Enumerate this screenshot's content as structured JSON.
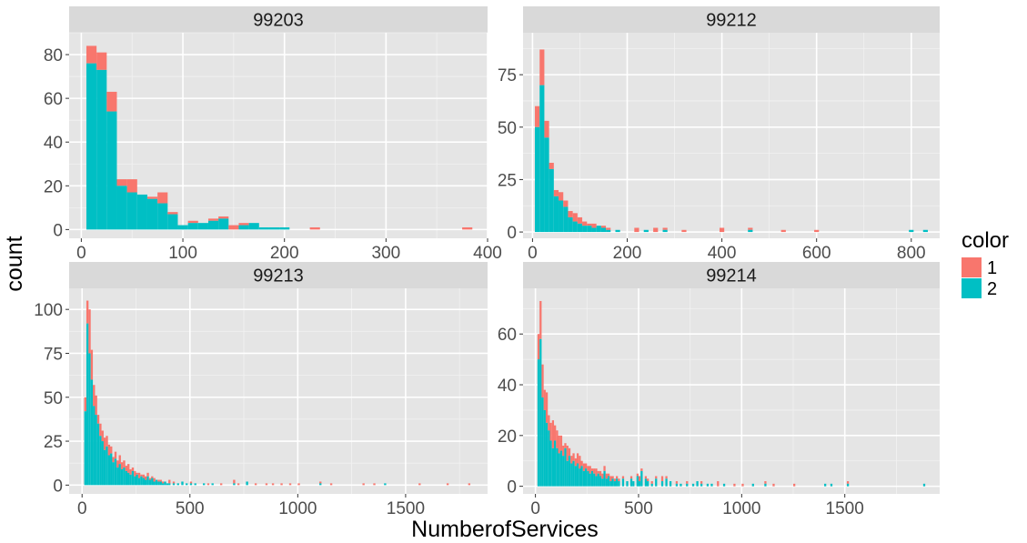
{
  "chart_data": {
    "type": "bar",
    "variant": "stacked-histogram-facets",
    "xlabel": "NumberofServices",
    "ylabel": "count",
    "legend": {
      "title": "color",
      "placement": "right",
      "entries": [
        {
          "label": "1",
          "color": "#F8766D"
        },
        {
          "label": "2",
          "color": "#00BFC4"
        }
      ]
    },
    "background": "#E5E5E5",
    "strip_background": "#D9D9D9",
    "grid": true,
    "panels": [
      {
        "title": "99203",
        "xlim": [
          -12,
          400
        ],
        "ylim": [
          -4,
          90
        ],
        "xticks": [
          0,
          100,
          200,
          300,
          400
        ],
        "yticks": [
          0,
          20,
          40,
          60,
          80
        ],
        "bins": [
          [
            5,
            15,
            76,
            84
          ],
          [
            15,
            25,
            73,
            81
          ],
          [
            25,
            35,
            54,
            63
          ],
          [
            35,
            45,
            20,
            23
          ],
          [
            45,
            55,
            17,
            23
          ],
          [
            55,
            65,
            16,
            16
          ],
          [
            65,
            75,
            14,
            15
          ],
          [
            75,
            85,
            12,
            17
          ],
          [
            85,
            95,
            7,
            8
          ],
          [
            95,
            105,
            2,
            2
          ],
          [
            105,
            115,
            3,
            4
          ],
          [
            115,
            125,
            3,
            3
          ],
          [
            125,
            135,
            4,
            5
          ],
          [
            135,
            145,
            5,
            6
          ],
          [
            145,
            155,
            0,
            2
          ],
          [
            155,
            165,
            2,
            3
          ],
          [
            165,
            175,
            3,
            3
          ],
          [
            175,
            185,
            1,
            1
          ],
          [
            185,
            195,
            1,
            1
          ],
          [
            195,
            205,
            1,
            1
          ],
          [
            225,
            235,
            0,
            1
          ],
          [
            375,
            385,
            0,
            1
          ]
        ]
      },
      {
        "title": "99212",
        "xlim": [
          -20,
          860
        ],
        "ylim": [
          -3,
          95
        ],
        "xticks": [
          0,
          200,
          400,
          600,
          800
        ],
        "yticks": [
          0,
          25,
          50,
          75
        ],
        "bins": [
          [
            5,
            15,
            50,
            60
          ],
          [
            15,
            25,
            70,
            87
          ],
          [
            25,
            35,
            45,
            53
          ],
          [
            35,
            45,
            30,
            33
          ],
          [
            45,
            55,
            17,
            20
          ],
          [
            55,
            65,
            15,
            19
          ],
          [
            65,
            75,
            12,
            15
          ],
          [
            75,
            85,
            7,
            10
          ],
          [
            85,
            95,
            5,
            9
          ],
          [
            95,
            105,
            4,
            7
          ],
          [
            105,
            115,
            3,
            5
          ],
          [
            115,
            125,
            3,
            4
          ],
          [
            125,
            135,
            2,
            4
          ],
          [
            135,
            145,
            3,
            3
          ],
          [
            145,
            155,
            2,
            3
          ],
          [
            155,
            165,
            1,
            2
          ],
          [
            175,
            185,
            1,
            1
          ],
          [
            215,
            225,
            0,
            2
          ],
          [
            235,
            245,
            1,
            1
          ],
          [
            255,
            265,
            0,
            2
          ],
          [
            275,
            285,
            1,
            2
          ],
          [
            315,
            325,
            0,
            1
          ],
          [
            395,
            405,
            0,
            2
          ],
          [
            455,
            465,
            1,
            2
          ],
          [
            525,
            535,
            0,
            1
          ],
          [
            595,
            605,
            0,
            1
          ],
          [
            795,
            805,
            1,
            1
          ],
          [
            825,
            835,
            1,
            1
          ]
        ]
      },
      {
        "title": "99213",
        "xlim": [
          -60,
          1880
        ],
        "ylim": [
          -5,
          112
        ],
        "xticks": [
          0,
          500,
          1000,
          1500
        ],
        "yticks": [
          0,
          25,
          50,
          75,
          100
        ],
        "bins": [
          [
            10,
            20,
            42,
            50
          ],
          [
            20,
            30,
            92,
            105
          ],
          [
            30,
            40,
            75,
            100
          ],
          [
            40,
            50,
            60,
            77
          ],
          [
            50,
            60,
            45,
            57
          ],
          [
            60,
            70,
            40,
            51
          ],
          [
            70,
            80,
            35,
            40
          ],
          [
            80,
            90,
            28,
            35
          ],
          [
            90,
            100,
            25,
            31
          ],
          [
            100,
            110,
            20,
            27
          ],
          [
            110,
            120,
            22,
            28
          ],
          [
            120,
            130,
            17,
            23
          ],
          [
            130,
            140,
            18,
            22
          ],
          [
            140,
            150,
            13,
            16
          ],
          [
            150,
            160,
            15,
            19
          ],
          [
            160,
            170,
            10,
            14
          ],
          [
            170,
            180,
            12,
            17
          ],
          [
            180,
            190,
            9,
            13
          ],
          [
            190,
            200,
            10,
            14
          ],
          [
            200,
            210,
            8,
            11
          ],
          [
            210,
            220,
            7,
            12
          ],
          [
            220,
            230,
            6,
            9
          ],
          [
            230,
            240,
            8,
            10
          ],
          [
            240,
            250,
            5,
            8
          ],
          [
            250,
            260,
            6,
            7
          ],
          [
            260,
            270,
            4,
            7
          ],
          [
            270,
            280,
            5,
            6
          ],
          [
            280,
            290,
            4,
            6
          ],
          [
            290,
            300,
            3,
            5
          ],
          [
            300,
            310,
            5,
            7
          ],
          [
            310,
            320,
            3,
            4
          ],
          [
            320,
            330,
            4,
            5
          ],
          [
            330,
            340,
            2,
            4
          ],
          [
            340,
            350,
            3,
            3
          ],
          [
            350,
            360,
            2,
            3
          ],
          [
            360,
            370,
            2,
            3
          ],
          [
            370,
            380,
            1,
            2
          ],
          [
            380,
            390,
            2,
            2
          ],
          [
            390,
            400,
            1,
            1
          ],
          [
            400,
            410,
            1,
            3
          ],
          [
            420,
            430,
            1,
            2
          ],
          [
            440,
            450,
            1,
            1
          ],
          [
            460,
            470,
            2,
            2
          ],
          [
            480,
            490,
            1,
            1
          ],
          [
            500,
            510,
            1,
            2
          ],
          [
            520,
            530,
            1,
            1
          ],
          [
            560,
            570,
            1,
            1
          ],
          [
            580,
            590,
            0,
            1
          ],
          [
            600,
            610,
            1,
            1
          ],
          [
            640,
            650,
            0,
            1
          ],
          [
            700,
            710,
            1,
            3
          ],
          [
            720,
            730,
            0,
            1
          ],
          [
            760,
            770,
            2,
            2
          ],
          [
            800,
            810,
            0,
            1
          ],
          [
            850,
            860,
            0,
            1
          ],
          [
            880,
            890,
            0,
            1
          ],
          [
            920,
            930,
            0,
            1
          ],
          [
            960,
            970,
            0,
            1
          ],
          [
            1000,
            1010,
            0,
            1
          ],
          [
            1100,
            1110,
            1,
            2
          ],
          [
            1150,
            1160,
            0,
            1
          ],
          [
            1300,
            1310,
            0,
            1
          ],
          [
            1350,
            1360,
            0,
            1
          ],
          [
            1400,
            1410,
            1,
            1
          ],
          [
            1560,
            1570,
            0,
            1
          ],
          [
            1690,
            1700,
            0,
            1
          ],
          [
            1790,
            1800,
            0,
            1
          ]
        ]
      },
      {
        "title": "99214",
        "xlim": [
          -60,
          1960
        ],
        "ylim": [
          -3,
          78
        ],
        "xticks": [
          0,
          500,
          1000,
          1500
        ],
        "yticks": [
          0,
          20,
          40,
          60
        ],
        "bins": [
          [
            10,
            20,
            50,
            60
          ],
          [
            20,
            30,
            58,
            73
          ],
          [
            30,
            40,
            35,
            48
          ],
          [
            40,
            50,
            30,
            38
          ],
          [
            50,
            60,
            25,
            37
          ],
          [
            60,
            70,
            22,
            28
          ],
          [
            70,
            80,
            18,
            25
          ],
          [
            80,
            90,
            15,
            26
          ],
          [
            90,
            100,
            18,
            24
          ],
          [
            100,
            110,
            15,
            22
          ],
          [
            110,
            120,
            13,
            20
          ],
          [
            120,
            130,
            14,
            20
          ],
          [
            130,
            140,
            12,
            16
          ],
          [
            140,
            150,
            15,
            17
          ],
          [
            150,
            160,
            10,
            16
          ],
          [
            160,
            170,
            12,
            15
          ],
          [
            170,
            180,
            9,
            12
          ],
          [
            180,
            190,
            10,
            13
          ],
          [
            190,
            200,
            8,
            11
          ],
          [
            200,
            210,
            9,
            13
          ],
          [
            210,
            220,
            7,
            12
          ],
          [
            220,
            230,
            8,
            10
          ],
          [
            230,
            240,
            6,
            9
          ],
          [
            240,
            250,
            7,
            9
          ],
          [
            250,
            260,
            6,
            8
          ],
          [
            260,
            270,
            5,
            8
          ],
          [
            270,
            280,
            6,
            7
          ],
          [
            280,
            290,
            5,
            7
          ],
          [
            290,
            300,
            4,
            7
          ],
          [
            300,
            310,
            5,
            6
          ],
          [
            310,
            320,
            4,
            6
          ],
          [
            320,
            330,
            3,
            5
          ],
          [
            330,
            340,
            6,
            8
          ],
          [
            340,
            350,
            3,
            5
          ],
          [
            350,
            360,
            4,
            5
          ],
          [
            360,
            370,
            2,
            4
          ],
          [
            370,
            380,
            3,
            4
          ],
          [
            380,
            390,
            2,
            3
          ],
          [
            390,
            400,
            3,
            4
          ],
          [
            400,
            410,
            2,
            3
          ],
          [
            420,
            430,
            3,
            4
          ],
          [
            440,
            450,
            2,
            2
          ],
          [
            460,
            470,
            3,
            4
          ],
          [
            470,
            480,
            2,
            2
          ],
          [
            490,
            500,
            4,
            5
          ],
          [
            500,
            510,
            2,
            4
          ],
          [
            510,
            520,
            6,
            7
          ],
          [
            530,
            540,
            3,
            4
          ],
          [
            540,
            550,
            2,
            3
          ],
          [
            560,
            570,
            1,
            2
          ],
          [
            580,
            590,
            3,
            4
          ],
          [
            610,
            620,
            2,
            4
          ],
          [
            630,
            640,
            3,
            4
          ],
          [
            650,
            660,
            2,
            2
          ],
          [
            680,
            690,
            1,
            2
          ],
          [
            700,
            710,
            1,
            1
          ],
          [
            730,
            740,
            1,
            2
          ],
          [
            760,
            770,
            1,
            1
          ],
          [
            780,
            790,
            2,
            2
          ],
          [
            800,
            810,
            1,
            2
          ],
          [
            830,
            840,
            1,
            1
          ],
          [
            850,
            860,
            1,
            1
          ],
          [
            880,
            890,
            0,
            2
          ],
          [
            910,
            920,
            1,
            1
          ],
          [
            960,
            970,
            0,
            1
          ],
          [
            1000,
            1010,
            0,
            1
          ],
          [
            1050,
            1060,
            1,
            1
          ],
          [
            1110,
            1120,
            1,
            2
          ],
          [
            1150,
            1160,
            0,
            1
          ],
          [
            1250,
            1260,
            0,
            1
          ],
          [
            1400,
            1410,
            1,
            1
          ],
          [
            1430,
            1440,
            1,
            1
          ],
          [
            1510,
            1520,
            1,
            2
          ],
          [
            1880,
            1890,
            1,
            1
          ]
        ]
      }
    ]
  }
}
